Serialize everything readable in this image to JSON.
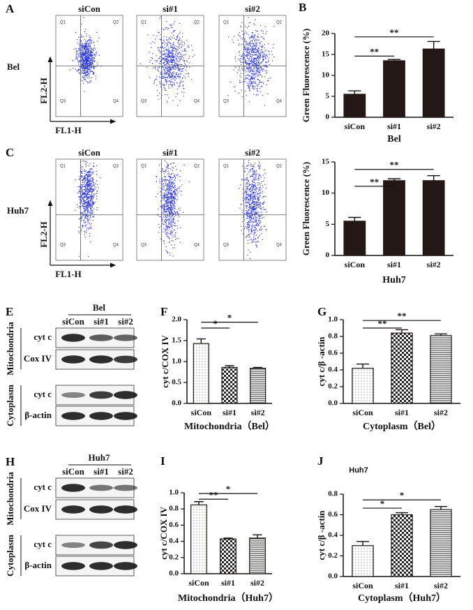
{
  "flow": [
    {
      "label": "A",
      "cell_line": "Bel",
      "samples": [
        "siCon",
        "si#1",
        "si#2"
      ],
      "quadrants": [
        "Q1",
        "Q2",
        "Q3",
        "Q4"
      ],
      "y_label": "FL2-H",
      "x_label": "FL1-H"
    },
    {
      "label": "C",
      "cell_line": "Huh7",
      "samples": [
        "siCon",
        "si#1",
        "si#2"
      ],
      "quadrants": [
        "Q1",
        "Q2",
        "Q3",
        "Q4"
      ],
      "y_label": "FL2-H",
      "x_label": "FL1-H"
    }
  ],
  "blots": [
    {
      "label": "E",
      "cell_line": "Bel",
      "samples": [
        "siCon",
        "si#1",
        "si#2"
      ],
      "sections": [
        {
          "name": "Mitochondria",
          "bands": [
            "cyt c",
            "Cox IV"
          ]
        },
        {
          "name": "Cytoplasm",
          "bands": [
            "cyt c",
            "β-actin"
          ]
        }
      ]
    },
    {
      "label": "H",
      "cell_line": "Huh7",
      "samples": [
        "siCon",
        "si#1",
        "si#2"
      ],
      "sections": [
        {
          "name": "Mitochondria",
          "bands": [
            "cyt c",
            "Cox IV"
          ]
        },
        {
          "name": "Cytoplasm",
          "bands": [
            "cyt c",
            "β-actin"
          ]
        }
      ]
    }
  ],
  "chart_data": [
    {
      "label": "B",
      "type": "bar",
      "y_label": "Green Fluorescence (%)",
      "x_label": "Bel",
      "categories": [
        "siCon",
        "si#1",
        "si#2"
      ],
      "values": [
        5.5,
        13.5,
        16.3
      ],
      "errors": [
        0.8,
        0.3,
        1.8
      ],
      "ylim": [
        0,
        20
      ],
      "yticks": [
        0,
        5,
        10,
        15,
        20
      ],
      "color": "#231815",
      "comparisons": [
        {
          "pair": [
            "siCon",
            "si#1"
          ],
          "label": "**"
        },
        {
          "pair": [
            "siCon",
            "si#2"
          ],
          "label": "**"
        }
      ]
    },
    {
      "type": "bar",
      "y_label": "Green Fluorescence (%)",
      "x_label": "Huh7",
      "categories": [
        "siCon",
        "si#1",
        "si#2"
      ],
      "values": [
        5.5,
        12,
        12
      ],
      "errors": [
        0.6,
        0.3,
        0.8
      ],
      "ylim": [
        0,
        15
      ],
      "yticks": [
        0,
        5,
        10,
        15
      ],
      "color": "#231815",
      "comparisons": [
        {
          "pair": [
            "siCon",
            "si#1"
          ],
          "label": "**"
        },
        {
          "pair": [
            "siCon",
            "si#2"
          ],
          "label": "**"
        }
      ]
    },
    {
      "label": "F",
      "type": "bar",
      "y_label": "cyt c/COX IV",
      "x_label": "Mitochondria（Bel）",
      "categories": [
        "siCon",
        "si#1",
        "si#2"
      ],
      "values": [
        1.43,
        0.86,
        0.84
      ],
      "errors": [
        0.11,
        0.04,
        0.02
      ],
      "ylim": [
        0,
        2
      ],
      "yticks": [
        {
          "value": 0,
          "label": "0.0"
        },
        0.5,
        {
          "value": 1,
          "label": "1.0"
        },
        1.5,
        {
          "value": 2,
          "label": "2.0"
        }
      ],
      "color": "#231815",
      "patterns": [
        "dots",
        "checker",
        "hlines"
      ],
      "comparisons": [
        {
          "pair": [
            "siCon",
            "si#1"
          ],
          "label": "*"
        },
        {
          "pair": [
            "siCon",
            "si#2"
          ],
          "label": "*"
        }
      ]
    },
    {
      "label": "G",
      "type": "bar",
      "y_label": "cyt c/β -actin",
      "x_label": "Cytoplasm（Bel）",
      "categories": [
        "siCon",
        "si#1",
        "si#2"
      ],
      "values": [
        0.42,
        0.84,
        0.81
      ],
      "errors": [
        0.05,
        0.04,
        0.02
      ],
      "ylim": [
        0,
        1
      ],
      "yticks": [
        {
          "value": 0,
          "label": "0.0"
        },
        0.2,
        0.4,
        0.6,
        0.8,
        {
          "value": 1,
          "label": "1.0"
        }
      ],
      "color": "#231815",
      "patterns": [
        "dots",
        "checker",
        "hlines"
      ],
      "comparisons": [
        {
          "pair": [
            "siCon",
            "si#1"
          ],
          "label": "**"
        },
        {
          "pair": [
            "siCon",
            "si#2"
          ],
          "label": "**"
        }
      ]
    },
    {
      "label": "I",
      "type": "bar",
      "y_label": "cyt c/COX IV",
      "x_label": "Mitochondria（Huh7）",
      "categories": [
        "siCon",
        "si#1",
        "si#2"
      ],
      "values": [
        0.85,
        0.43,
        0.44
      ],
      "errors": [
        0.04,
        0.01,
        0.04
      ],
      "ylim": [
        0,
        1
      ],
      "yticks": [
        {
          "value": 0,
          "label": "0.0"
        },
        0.2,
        0.4,
        0.6,
        0.8,
        {
          "value": 1,
          "label": "1.0"
        }
      ],
      "color": "#231815",
      "patterns": [
        "dots",
        "checker",
        "hlines"
      ],
      "comparisons": [
        {
          "pair": [
            "siCon",
            "si#1"
          ],
          "label": "**"
        },
        {
          "pair": [
            "siCon",
            "si#2"
          ],
          "label": "*"
        }
      ]
    },
    {
      "label": "J",
      "type": "bar",
      "title": "Huh7",
      "y_label": "cyt c/β -actin",
      "x_label": "Cytoplasm（Huh7）",
      "categories": [
        "siCon",
        "si#1",
        "si#2"
      ],
      "values": [
        0.3,
        0.6,
        0.65
      ],
      "errors": [
        0.04,
        0.02,
        0.03
      ],
      "ylim": [
        0,
        0.8
      ],
      "yticks": [
        {
          "value": 0,
          "label": "0.0"
        },
        0.2,
        0.4,
        0.6,
        0.8
      ],
      "color": "#231815",
      "patterns": [
        "dots",
        "checker",
        "hlines"
      ],
      "comparisons": [
        {
          "pair": [
            "siCon",
            "si#1"
          ],
          "label": "*"
        },
        {
          "pair": [
            "siCon",
            "si#2"
          ],
          "label": "*"
        }
      ]
    }
  ]
}
